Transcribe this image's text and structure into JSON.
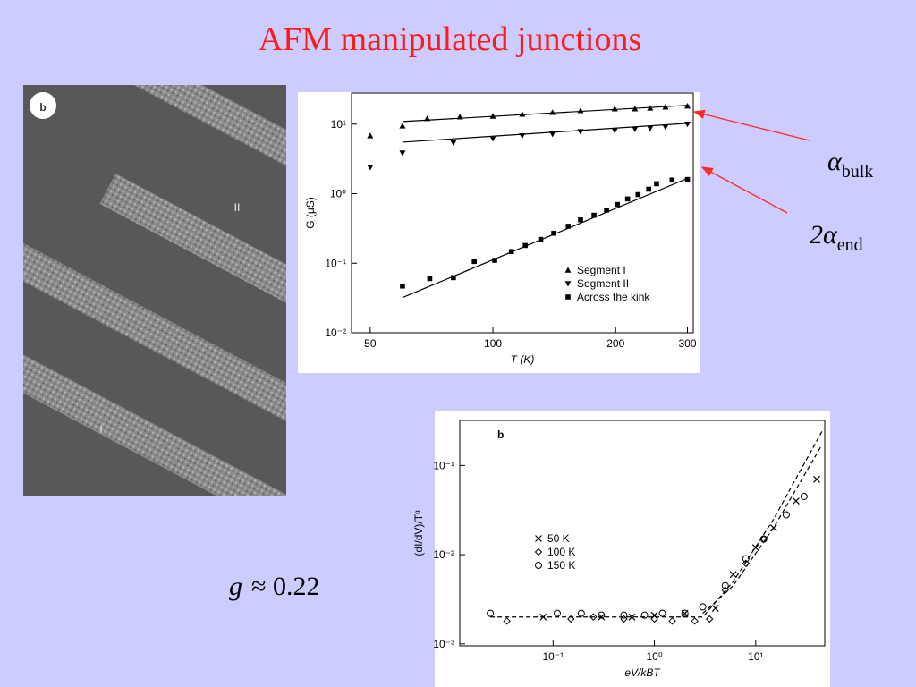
{
  "title": "AFM manipulated junctions",
  "image_labels": {
    "panel": "b",
    "segment_2": "II",
    "segment_1": "I"
  },
  "annotations": [
    {
      "symbol": "α",
      "sub": "bulk"
    },
    {
      "symbol": "2α",
      "sub": "end"
    }
  ],
  "coupling": {
    "var": "g",
    "rest": "≈ 0.22"
  },
  "chart_data": [
    {
      "type": "scatter",
      "xlabel": "T (K)",
      "ylabel": "G (μS)",
      "log_x": true,
      "log_y": true,
      "xlim": [
        45,
        310
      ],
      "ylim": [
        0.01,
        28
      ],
      "xticks": [
        50,
        100,
        200,
        300
      ],
      "yticks": [
        {
          "value": 0.01,
          "label": "10⁻²"
        },
        {
          "value": 0.1,
          "label": "10⁻¹"
        },
        {
          "value": 1,
          "label": "10⁰"
        },
        {
          "value": 10,
          "label": "10¹"
        }
      ],
      "legend": "lower right",
      "series": [
        {
          "name": "Segment I",
          "marker": "triangle-up",
          "color": "#000000",
          "x": [
            50,
            60,
            69,
            83,
            100,
            118,
            140,
            164,
            199,
            223,
            243,
            265,
            300
          ],
          "values": [
            6.8,
            9.4,
            12,
            12.7,
            13,
            13.9,
            14.7,
            15.6,
            16.6,
            16.6,
            17,
            17.6,
            18.2
          ]
        },
        {
          "name": "Segment II",
          "marker": "triangle-down",
          "color": "#000000",
          "x": [
            50,
            60,
            80,
            100,
            118,
            140,
            164,
            199,
            223,
            243,
            265,
            300
          ],
          "values": [
            2.4,
            3.85,
            5.4,
            6.2,
            6.8,
            7.2,
            7.8,
            8.1,
            8.5,
            8.7,
            9.1,
            10
          ]
        },
        {
          "name": "Across the kink",
          "marker": "square",
          "color": "#000000",
          "x": [
            60,
            70,
            80,
            90,
            101,
            111,
            120,
            131,
            141,
            153,
            164,
            177,
            190,
            202,
            214,
            227,
            241,
            252,
            275,
            300
          ],
          "values": [
            0.047,
            0.06,
            0.062,
            0.106,
            0.11,
            0.147,
            0.18,
            0.22,
            0.27,
            0.34,
            0.42,
            0.49,
            0.58,
            0.7,
            0.84,
            0.97,
            1.16,
            1.39,
            1.57,
            1.6
          ]
        }
      ],
      "fit_lines": [
        {
          "x": [
            60,
            303
          ],
          "values": [
            10.9,
            18.7
          ]
        },
        {
          "x": [
            60,
            303
          ],
          "values": [
            5.5,
            10.3
          ]
        },
        {
          "x": [
            60,
            303
          ],
          "values": [
            0.032,
            1.7
          ]
        }
      ]
    },
    {
      "type": "scatter",
      "panel_label": "b",
      "xlabel": "eV/kBT",
      "ylabel": "(dI/dV)/Tᵅ",
      "log_x": true,
      "log_y": true,
      "xlim": [
        0.012,
        48
      ],
      "ylim": [
        0.00095,
        0.32
      ],
      "xticks": [
        {
          "value": 0.1,
          "label": "10⁻¹"
        },
        {
          "value": 1,
          "label": "10⁰"
        },
        {
          "value": 10,
          "label": "10¹"
        }
      ],
      "yticks": [
        {
          "value": 0.001,
          "label": "10⁻³"
        },
        {
          "value": 0.01,
          "label": "10⁻²"
        },
        {
          "value": 0.1,
          "label": "10⁻¹"
        }
      ],
      "legend": "center left",
      "series": [
        {
          "name": "50 K",
          "marker": "cross",
          "color": "#000000",
          "x": [
            0.08,
            0.3,
            0.6,
            1,
            2,
            4,
            6,
            10,
            15,
            25,
            40
          ],
          "values": [
            0.002,
            0.002,
            0.002,
            0.0021,
            0.0022,
            0.0025,
            0.006,
            0.012,
            0.02,
            0.04,
            0.07
          ]
        },
        {
          "name": "100 K",
          "marker": "diamond",
          "color": "#000000",
          "x": [
            0.035,
            0.15,
            0.25,
            0.5,
            1,
            1.5,
            2.5,
            3.5,
            5,
            8,
            12
          ],
          "values": [
            0.0018,
            0.0019,
            0.002,
            0.0019,
            0.0019,
            0.0018,
            0.0018,
            0.0019,
            0.004,
            0.008,
            0.015
          ]
        },
        {
          "name": "150 K",
          "marker": "circle",
          "color": "#000000",
          "x": [
            0.024,
            0.11,
            0.19,
            0.3,
            0.5,
            0.8,
            1.2,
            2,
            3,
            5,
            8,
            12,
            20,
            30
          ],
          "values": [
            0.0022,
            0.0022,
            0.0022,
            0.0021,
            0.0021,
            0.0021,
            0.0022,
            0.0022,
            0.0026,
            0.0045,
            0.009,
            0.015,
            0.028,
            0.045
          ]
        }
      ],
      "guide_lines": [
        {
          "x": [
            0.024,
            1,
            3,
            6,
            15,
            45
          ],
          "values": [
            0.002,
            0.002,
            0.002,
            0.005,
            0.025,
            0.24
          ]
        },
        {
          "x": [
            3,
            6,
            15,
            45
          ],
          "values": [
            0.0022,
            0.0045,
            0.02,
            0.17
          ]
        }
      ]
    }
  ]
}
